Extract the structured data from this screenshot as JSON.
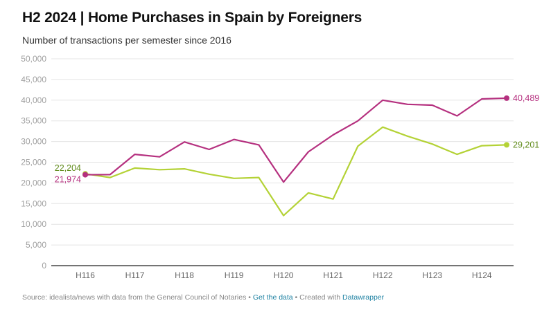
{
  "header": {
    "title": "H2 2024 | Home Purchases in Spain by Foreigners",
    "subtitle": "Number of transactions per semester since 2016"
  },
  "footer": {
    "source": "Source: idealista/news with data from the General Council of Notaries",
    "separator": " • ",
    "get_data_label": "Get the data",
    "created_with": "Created with ",
    "datawrapper_label": "Datawrapper"
  },
  "chart_data": {
    "type": "line",
    "title": "H2 2024 | Home Purchases in Spain by Foreigners",
    "subtitle": "Number of transactions per semester since 2016",
    "xlabel": "",
    "ylabel": "",
    "ylim": [
      0,
      50000
    ],
    "yticks": [
      0,
      5000,
      10000,
      15000,
      20000,
      25000,
      30000,
      35000,
      40000,
      45000,
      50000
    ],
    "ytick_labels": [
      "0",
      "5,000",
      "10,000",
      "15,000",
      "20,000",
      "25,000",
      "30,000",
      "35,000",
      "40,000",
      "45,000",
      "50,000"
    ],
    "grid": true,
    "legend": "none",
    "x": [
      "H116",
      "H216",
      "H117",
      "H217",
      "H118",
      "H218",
      "H119",
      "H219",
      "H120",
      "H220",
      "H121",
      "H221",
      "H122",
      "H222",
      "H123",
      "H223",
      "H124",
      "H224"
    ],
    "xtick_labels": [
      "H116",
      "H117",
      "H118",
      "H119",
      "H120",
      "H121",
      "H122",
      "H123",
      "H124"
    ],
    "series": [
      {
        "name": "",
        "color": "#b5307f",
        "label_color": "#b5307f",
        "values": [
          21974,
          22000,
          26900,
          26300,
          29900,
          28100,
          30500,
          29200,
          20200,
          27500,
          31600,
          35000,
          40000,
          39000,
          38800,
          36200,
          40300,
          40489
        ],
        "start_label": "21,974",
        "end_label": "40,489"
      },
      {
        "name": "",
        "color": "#b4d236",
        "label_color": "#5f8a19",
        "values": [
          22204,
          21300,
          23600,
          23200,
          23400,
          22100,
          21100,
          21300,
          12100,
          17600,
          16100,
          28900,
          33500,
          31300,
          29400,
          26900,
          29000,
          29201
        ],
        "start_label": "22,204",
        "end_label": "29,201"
      }
    ]
  }
}
